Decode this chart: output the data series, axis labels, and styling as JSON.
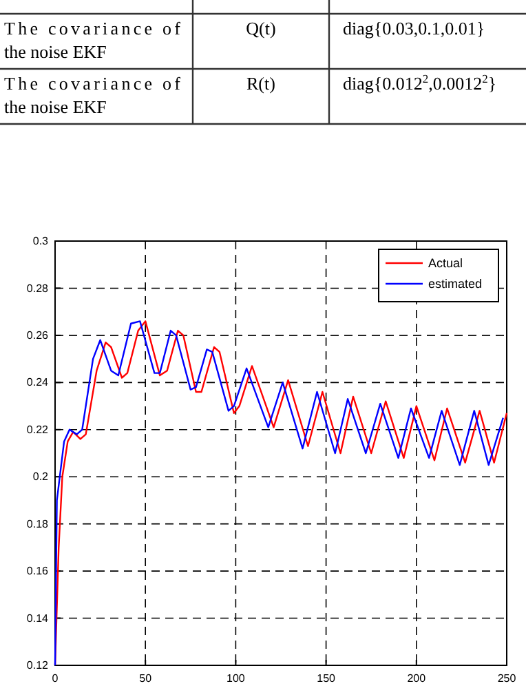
{
  "chart_data": {
    "type": "line",
    "annotations": [
      "The covariance of the noise EKF",
      "Q(t)",
      "diag{0.03,0.1,0.01}",
      "The covariance of the noise EKF",
      "R(t)",
      "diag{0.012$^{2}$,0.0012$^{2}$}"
    ],
    "xlim": [
      0,
      250
    ],
    "xticks": [
      0,
      50,
      100,
      150,
      200,
      250
    ],
    "ylim": [
      0.12,
      0.3
    ],
    "yticks": [
      0.12,
      0.14,
      0.16,
      0.18,
      0.2,
      0.22,
      0.24,
      0.26,
      0.28,
      0.3
    ],
    "grid": true,
    "legend": "top right",
    "line_style": "solid",
    "series": [
      {
        "name": "Actual",
        "color": "#ff0000",
        "x": [
          0,
          2,
          4,
          7,
          10,
          14,
          17,
          23,
          28,
          31,
          37,
          40,
          46,
          50,
          58,
          62,
          68,
          71,
          78,
          81,
          88,
          91,
          99,
          102,
          109,
          121,
          129,
          140,
          148,
          158,
          165,
          175,
          183,
          193,
          200,
          210,
          217,
          227,
          235,
          243,
          250
        ],
        "values": [
          0.12,
          0.17,
          0.2,
          0.215,
          0.219,
          0.216,
          0.218,
          0.245,
          0.257,
          0.255,
          0.242,
          0.244,
          0.262,
          0.266,
          0.243,
          0.245,
          0.262,
          0.26,
          0.236,
          0.236,
          0.255,
          0.253,
          0.227,
          0.23,
          0.247,
          0.221,
          0.241,
          0.213,
          0.236,
          0.21,
          0.234,
          0.21,
          0.232,
          0.208,
          0.23,
          0.207,
          0.229,
          0.206,
          0.228,
          0.206,
          0.227
        ]
      },
      {
        "name": "estimated",
        "color": "#0000ff",
        "x": [
          0,
          1,
          5,
          8,
          12,
          15,
          21,
          25,
          31,
          35,
          42,
          47,
          55,
          58,
          64,
          67,
          75,
          78,
          84,
          87,
          96,
          99,
          106,
          118,
          126,
          137,
          145,
          155,
          162,
          172,
          180,
          190,
          197,
          207,
          214,
          224,
          232,
          240,
          248
        ],
        "values": [
          0.12,
          0.19,
          0.215,
          0.22,
          0.218,
          0.22,
          0.25,
          0.258,
          0.245,
          0.243,
          0.265,
          0.266,
          0.244,
          0.244,
          0.262,
          0.26,
          0.237,
          0.238,
          0.254,
          0.253,
          0.228,
          0.23,
          0.246,
          0.221,
          0.24,
          0.212,
          0.236,
          0.21,
          0.233,
          0.21,
          0.231,
          0.208,
          0.229,
          0.208,
          0.228,
          0.205,
          0.228,
          0.205,
          0.225
        ]
      }
    ]
  }
}
